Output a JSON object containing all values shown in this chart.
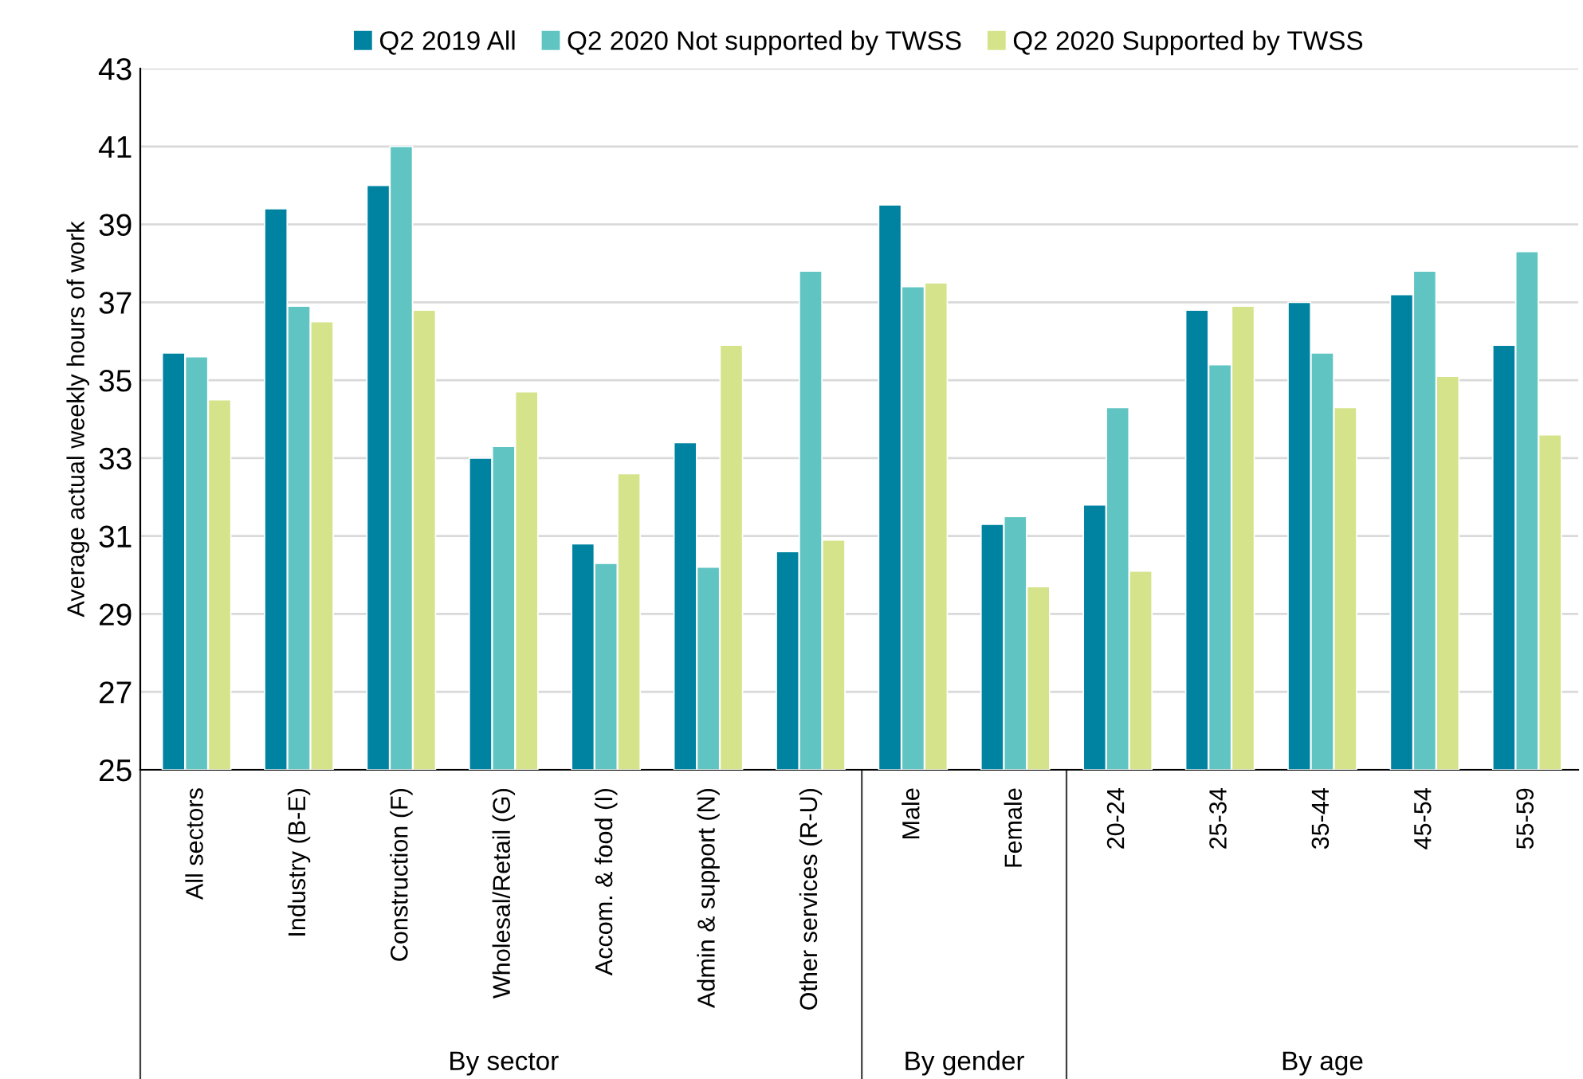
{
  "chart_data": {
    "type": "bar",
    "categories": [
      "All sectors",
      "Industry (B-E)",
      "Construction (F)",
      "Wholesal/Retail (G)",
      "Accom. & food (I)",
      "Admin & support (N)",
      "Other services (R-U)",
      "Male",
      "Female",
      "20-24",
      "25-34",
      "35-44",
      "45-54",
      "55-59"
    ],
    "series": [
      {
        "name": "Q2 2019 All",
        "color": "#0083a0",
        "values": [
          35.7,
          39.4,
          40.0,
          33.0,
          30.8,
          33.4,
          30.6,
          39.5,
          31.3,
          31.8,
          36.8,
          37.0,
          37.2,
          35.9
        ]
      },
      {
        "name": "Q2 2020 Not supported by TWSS",
        "color": "#60c5c2",
        "values": [
          35.6,
          36.9,
          41.0,
          33.3,
          30.3,
          30.2,
          37.8,
          37.4,
          31.5,
          34.3,
          35.4,
          35.7,
          37.8,
          38.3
        ]
      },
      {
        "name": "Q2 2020 Supported by TWSS",
        "color": "#d5e38a",
        "values": [
          34.5,
          36.5,
          36.8,
          34.7,
          32.6,
          35.9,
          30.9,
          37.5,
          29.7,
          30.1,
          36.9,
          34.3,
          35.1,
          33.6
        ]
      }
    ],
    "ylabel": "Average actual weekly hours of work",
    "ylim": [
      25,
      43
    ],
    "yticks": [
      25,
      27,
      29,
      31,
      33,
      35,
      37,
      39,
      41,
      43
    ],
    "annotations": [
      "By sector",
      "By gender",
      "By age"
    ],
    "grid": "y",
    "legend": "top"
  }
}
